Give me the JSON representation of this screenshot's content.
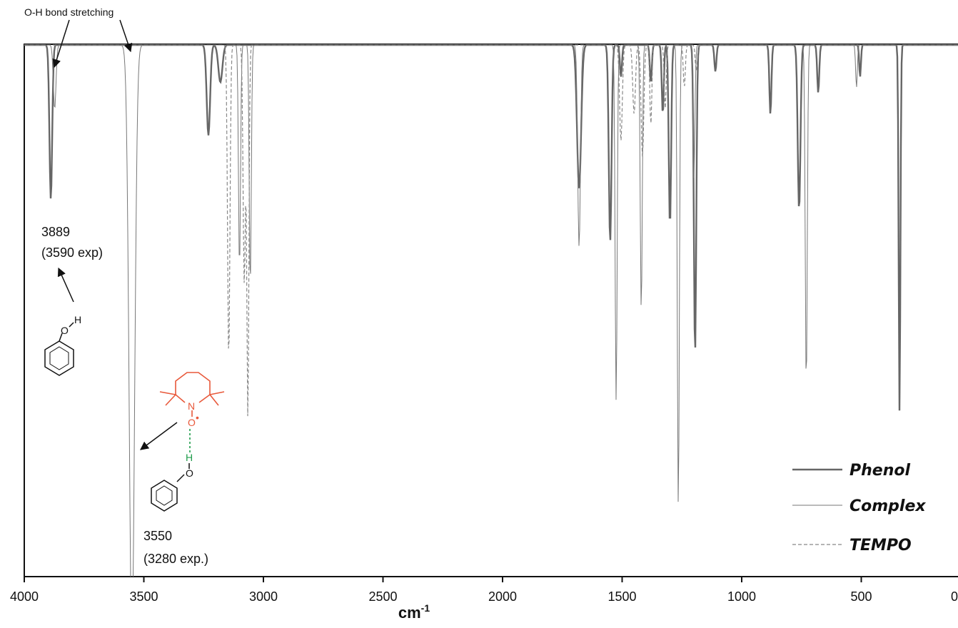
{
  "chart_data": {
    "type": "line",
    "xlabel_base": "cm",
    "xlabel_sup": "-1",
    "xlim": [
      4000,
      0
    ],
    "ylim": [
      0,
      1
    ],
    "x_ticks": [
      "4000",
      "3500",
      "3000",
      "2500",
      "2000",
      "1500",
      "1000",
      "500",
      "0"
    ],
    "x_tick_values": [
      4000,
      3500,
      3000,
      2500,
      2000,
      1500,
      1000,
      500,
      0
    ],
    "grid": false,
    "legend_position": "bottom-right",
    "series": [
      {
        "name": "Phenol",
        "style": "solid-thick",
        "color": "#666666",
        "peaks": [
          {
            "x": 3889,
            "depth": 0.29,
            "width": 8
          },
          {
            "x": 3230,
            "depth": 0.17,
            "width": 10
          },
          {
            "x": 3180,
            "depth": 0.07,
            "width": 12
          },
          {
            "x": 1680,
            "depth": 0.27,
            "width": 12
          },
          {
            "x": 1550,
            "depth": 0.37,
            "width": 8
          },
          {
            "x": 1505,
            "depth": 0.06,
            "width": 6
          },
          {
            "x": 1380,
            "depth": 0.07,
            "width": 6
          },
          {
            "x": 1330,
            "depth": 0.13,
            "width": 6
          },
          {
            "x": 1300,
            "depth": 0.34,
            "width": 7
          },
          {
            "x": 1195,
            "depth": 0.58,
            "width": 7
          },
          {
            "x": 1110,
            "depth": 0.05,
            "width": 6
          },
          {
            "x": 880,
            "depth": 0.13,
            "width": 6
          },
          {
            "x": 760,
            "depth": 0.31,
            "width": 8
          },
          {
            "x": 680,
            "depth": 0.09,
            "width": 6
          },
          {
            "x": 505,
            "depth": 0.06,
            "width": 5
          },
          {
            "x": 340,
            "depth": 0.69,
            "width": 5
          }
        ]
      },
      {
        "name": "Complex",
        "style": "solid-thin",
        "color": "#777777",
        "peaks": [
          {
            "x": 3873,
            "depth": 0.12,
            "width": 8
          },
          {
            "x": 3550,
            "depth": 1.12,
            "width": 16
          },
          {
            "x": 3100,
            "depth": 0.42,
            "width": 6
          },
          {
            "x": 3055,
            "depth": 0.45,
            "width": 6
          },
          {
            "x": 1680,
            "depth": 0.38,
            "width": 8
          },
          {
            "x": 1525,
            "depth": 0.67,
            "width": 6
          },
          {
            "x": 1420,
            "depth": 0.5,
            "width": 6
          },
          {
            "x": 1265,
            "depth": 0.87,
            "width": 6
          },
          {
            "x": 1200,
            "depth": 0.25,
            "width": 6
          },
          {
            "x": 730,
            "depth": 0.64,
            "width": 6
          },
          {
            "x": 520,
            "depth": 0.08,
            "width": 5
          }
        ]
      },
      {
        "name": "TEMPO",
        "style": "dashed",
        "color": "#888888",
        "peaks": [
          {
            "x": 3145,
            "depth": 0.59,
            "width": 7
          },
          {
            "x": 3080,
            "depth": 0.45,
            "width": 7
          },
          {
            "x": 3065,
            "depth": 0.7,
            "width": 6
          },
          {
            "x": 1505,
            "depth": 0.18,
            "width": 8
          },
          {
            "x": 1450,
            "depth": 0.13,
            "width": 8
          },
          {
            "x": 1415,
            "depth": 0.21,
            "width": 8
          },
          {
            "x": 1380,
            "depth": 0.15,
            "width": 6
          },
          {
            "x": 1320,
            "depth": 0.12,
            "width": 6
          },
          {
            "x": 1240,
            "depth": 0.08,
            "width": 6
          },
          {
            "x": 1190,
            "depth": 0.05,
            "width": 6
          }
        ]
      }
    ],
    "legend": [
      "Phenol",
      "Complex",
      "TEMPO"
    ],
    "annotations": {
      "top_label": "O-H bond stretching",
      "phenol_peak_label": "3889",
      "phenol_exp_label": "(3590 exp)",
      "complex_peak_label": "3550",
      "complex_exp_label": "(3280 exp.)"
    },
    "molecule_atoms": {
      "oh": "O",
      "h": "H",
      "n": "N",
      "radical_o": "O",
      "radical_dot": "•",
      "bridge_h": "H",
      "phenol_o": "O"
    }
  }
}
